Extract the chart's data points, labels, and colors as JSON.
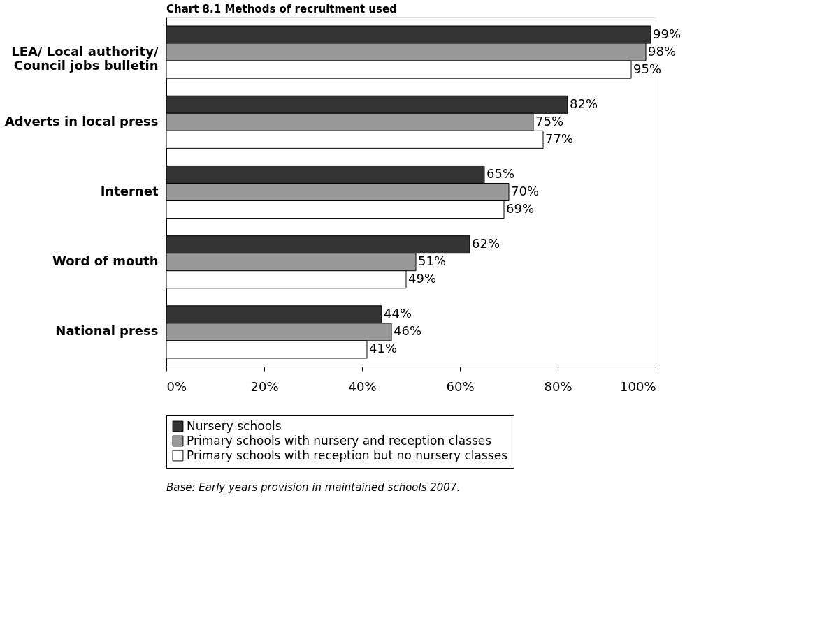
{
  "chart_data": {
    "type": "bar",
    "orientation": "horizontal",
    "title": "Chart 8.1 Methods of recruitment used",
    "categories": [
      "LEA/ Local authority/ Council jobs bulletin",
      "Adverts in local press",
      "Internet",
      "Word of mouth",
      "National press"
    ],
    "series": [
      {
        "name": "Nursery schools",
        "color": "#333333",
        "values": [
          99,
          82,
          65,
          62,
          44
        ],
        "value_labels": [
          "99%",
          "82%",
          "65%",
          "62%",
          "44%"
        ]
      },
      {
        "name": "Primary schools with nursery and reception classes",
        "color": "#999999",
        "values": [
          98,
          75,
          70,
          51,
          46
        ],
        "value_labels": [
          "98%",
          "75%",
          "70%",
          "51%",
          "46%"
        ]
      },
      {
        "name": "Primary schools with reception but no nursery classes",
        "color": "#ffffff",
        "values": [
          95,
          77,
          69,
          49,
          41
        ],
        "value_labels": [
          "95%",
          "77%",
          "69%",
          "49%",
          "41%"
        ]
      }
    ],
    "xlim": [
      0,
      100
    ],
    "xticks": [
      {
        "value": 0,
        "label": "0%"
      },
      {
        "value": 20,
        "label": "20%"
      },
      {
        "value": 40,
        "label": "40%"
      },
      {
        "value": 60,
        "label": "60%"
      },
      {
        "value": 80,
        "label": "80%"
      },
      {
        "value": 100,
        "label": "100%"
      }
    ],
    "grid": false,
    "legend": "bottom",
    "annotations": [
      "Base: Early years provision in maintained schools 2007."
    ]
  }
}
